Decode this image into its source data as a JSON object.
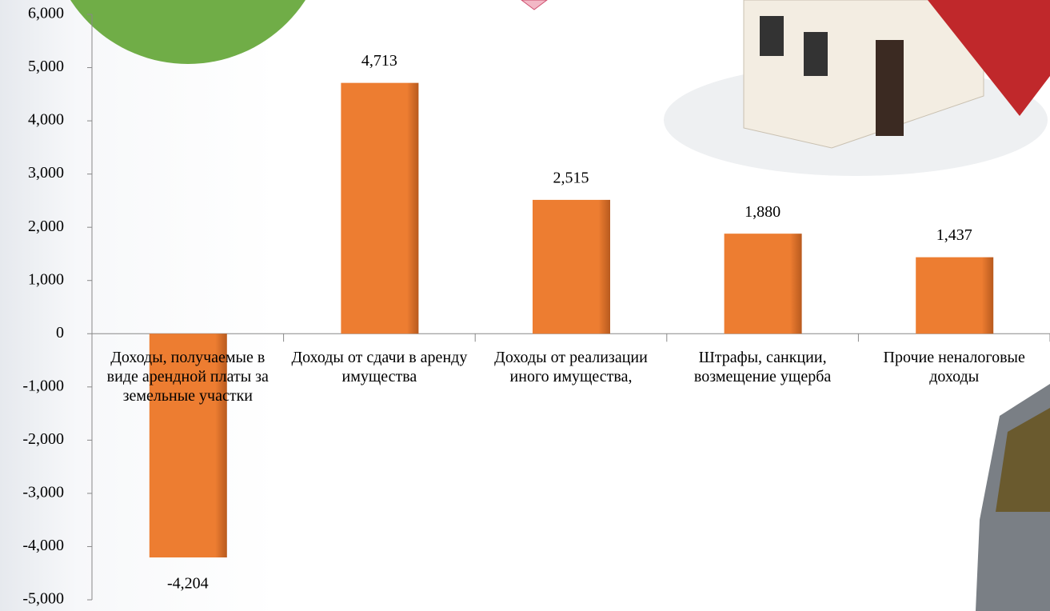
{
  "chart_data": {
    "type": "bar",
    "categories": [
      "Доходы, получаемые в виде арендной платы за земельные участки",
      "Доходы от сдачи в аренду имущества",
      "Доходы от реализации иного имущества,",
      "Штрафы, санкции, возмещение ущерба",
      "Прочие неналоговые доходы"
    ],
    "values": [
      -4204,
      4713,
      2515,
      1880,
      1437
    ],
    "value_labels": [
      "-4,204",
      "4,713",
      "2,515",
      "1,880",
      "1,437"
    ],
    "color": "#ed7d31",
    "ylim": [
      -5000,
      6000
    ],
    "yticks": [
      {
        "value": -5000,
        "label": "-5,000"
      },
      {
        "value": -4000,
        "label": "-4,000"
      },
      {
        "value": -3000,
        "label": "-3,000"
      },
      {
        "value": -2000,
        "label": "-2,000"
      },
      {
        "value": -1000,
        "label": "-1,000"
      },
      0,
      {
        "value": 1000,
        "label": "1,000"
      },
      {
        "value": 2000,
        "label": "2,000"
      },
      {
        "value": 3000,
        "label": "3,000"
      },
      {
        "value": 4000,
        "label": "4,000"
      },
      {
        "value": 5000,
        "label": "5,000"
      },
      {
        "value": 6000,
        "label": "6,000"
      }
    ],
    "grid": false
  }
}
